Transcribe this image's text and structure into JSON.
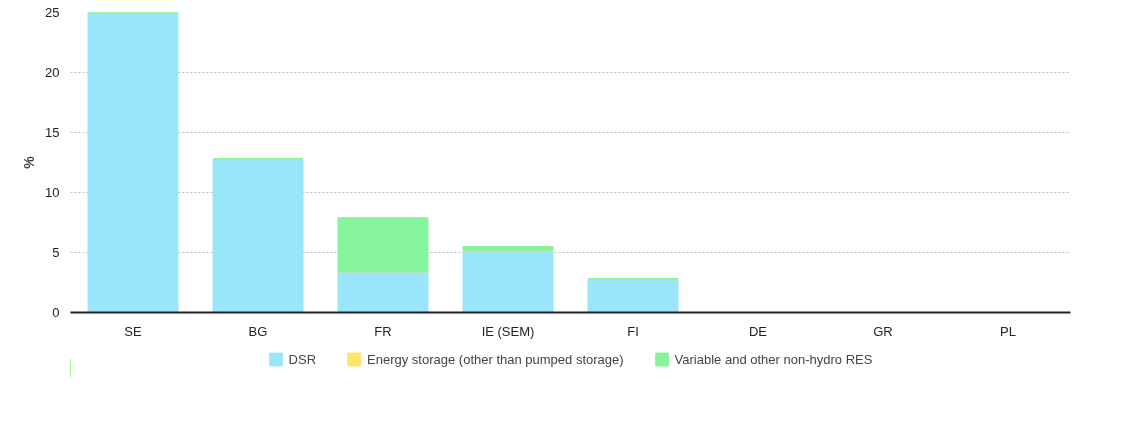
{
  "chart_data": {
    "type": "bar",
    "stacked": true,
    "ylabel": "%",
    "categories": [
      "SE",
      "BG",
      "FR",
      "IE (SEM)",
      "FI",
      "DE",
      "GR",
      "PL"
    ],
    "series": [
      {
        "name": "DSR",
        "color": "#9be5fb",
        "values": [
          25,
          12.8,
          3.4,
          5.2,
          2.8,
          0,
          0,
          0
        ]
      },
      {
        "name": "Energy storage (other than pumped storage)",
        "color": "#fde46b",
        "values": [
          0,
          0,
          0,
          0,
          0,
          0,
          0,
          0
        ]
      },
      {
        "name": "Variable and other non-hydro RES",
        "color": "#85f49a",
        "values": [
          0,
          0,
          4.5,
          0.3,
          0,
          0,
          0,
          0
        ]
      }
    ],
    "ylim": [
      0,
      25
    ],
    "yticks": [
      0,
      5,
      10,
      15,
      20,
      25
    ],
    "grid": "y",
    "legend": "bottom"
  }
}
